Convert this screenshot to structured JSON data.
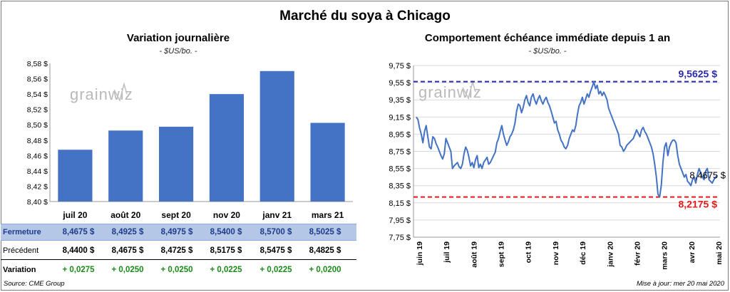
{
  "title": "Marché du soya à Chicago",
  "watermark": "grainwiz",
  "left_panel": {
    "subtitle": "Variation journalière",
    "unit": "- $US/bo. -"
  },
  "right_panel": {
    "subtitle": "Comportement  échéance immédiate depuis 1 an",
    "unit": "- $US/bo. -"
  },
  "chart_data": [
    {
      "type": "bar",
      "categories": [
        "juil 20",
        "août 20",
        "sept 20",
        "nov 20",
        "janv 21",
        "mars 21"
      ],
      "values": [
        8.4675,
        8.4925,
        8.4975,
        8.54,
        8.57,
        8.5025
      ],
      "ylim": [
        8.4,
        8.58
      ],
      "yticks": [
        "8,40 $",
        "8,42 $",
        "8,44 $",
        "8,46 $",
        "8,48 $",
        "8,50 $",
        "8,52 $",
        "8,54 $",
        "8,56 $",
        "8,58 $"
      ],
      "color": "#4472c4",
      "grid": false
    },
    {
      "type": "line",
      "color": "#4472c4",
      "ylim": [
        7.75,
        9.75
      ],
      "yticks": [
        "7,75 $",
        "7,95 $",
        "8,15 $",
        "8,35 $",
        "8,55 $",
        "8,75 $",
        "8,95 $",
        "9,15 $",
        "9,35 $",
        "9,55 $",
        "9,75 $"
      ],
      "xticks": [
        "juin 19",
        "juil 19",
        "août 19",
        "sept 19",
        "oct 19",
        "nov 19",
        "déc 19",
        "janv 20",
        "févr 20",
        "mars 20",
        "avr 20",
        "mai 20"
      ],
      "values": [
        9.15,
        9.12,
        9.02,
        8.95,
        8.85,
        8.98,
        9.05,
        8.92,
        8.8,
        8.78,
        8.92,
        8.9,
        8.84,
        8.8,
        8.75,
        8.7,
        8.66,
        8.72,
        8.9,
        8.85,
        8.8,
        8.75,
        8.55,
        8.58,
        8.6,
        8.62,
        8.57,
        8.55,
        8.6,
        8.72,
        8.8,
        8.76,
        8.68,
        8.58,
        8.62,
        8.56,
        8.65,
        8.7,
        8.56,
        8.6,
        8.55,
        8.62,
        8.65,
        8.68,
        8.6,
        8.62,
        8.66,
        8.7,
        8.74,
        8.85,
        8.9,
        8.98,
        9.05,
        8.95,
        8.88,
        8.82,
        8.86,
        8.92,
        8.95,
        9.0,
        9.08,
        9.22,
        9.3,
        9.28,
        9.2,
        9.26,
        9.35,
        9.4,
        9.32,
        9.28,
        9.38,
        9.42,
        9.35,
        9.3,
        9.36,
        9.4,
        9.34,
        9.3,
        9.35,
        9.38,
        9.32,
        9.28,
        9.22,
        9.15,
        9.08,
        9.1,
        9.0,
        8.95,
        8.88,
        8.85,
        8.8,
        8.78,
        8.82,
        8.9,
        8.95,
        9.0,
        8.98,
        9.05,
        9.18,
        9.28,
        9.32,
        9.38,
        9.3,
        9.36,
        9.42,
        9.38,
        9.45,
        9.5,
        9.56,
        9.48,
        9.52,
        9.42,
        9.45,
        9.4,
        9.44,
        9.4,
        9.35,
        9.25,
        9.2,
        9.15,
        9.1,
        9.05,
        9.0,
        8.95,
        8.82,
        8.8,
        8.75,
        8.78,
        8.82,
        8.84,
        8.86,
        8.88,
        8.9,
        8.95,
        9.0,
        8.96,
        8.92,
        9.0,
        9.03,
        8.98,
        8.95,
        8.9,
        8.85,
        8.8,
        8.72,
        8.6,
        8.45,
        8.25,
        8.22,
        8.35,
        8.62,
        8.8,
        8.85,
        8.7,
        8.8,
        8.85,
        8.88,
        8.88,
        8.85,
        8.7,
        8.6,
        8.55,
        8.5,
        8.45,
        8.48,
        8.4,
        8.38,
        8.35,
        8.42,
        8.45,
        8.38,
        8.48,
        8.55,
        8.5,
        8.45,
        8.42,
        8.52,
        8.55,
        8.42,
        8.4,
        8.38,
        8.42,
        8.45,
        8.4675
      ],
      "high": {
        "value": 9.5625,
        "label": "9,5625 $",
        "color": "#2b2ba8"
      },
      "low": {
        "value": 8.2175,
        "label": "8,2175 $",
        "color": "#e31a1a"
      },
      "last": {
        "value": 8.4675,
        "label": "8,4675 $"
      },
      "grid": true
    }
  ],
  "table": {
    "rows": [
      {
        "label": "Fermeture",
        "values": [
          "8,4675  $",
          "8,4925  $",
          "8,4975  $",
          "8,5400  $",
          "8,5700  $",
          "8,5025  $"
        ]
      },
      {
        "label": "Précédent",
        "values": [
          "8,4400  $",
          "8,4675  $",
          "8,4725  $",
          "8,5175  $",
          "8,5475  $",
          "8,4825  $"
        ]
      },
      {
        "label": "Variation",
        "values": [
          "+ 0,0275",
          "+ 0,0250",
          "+ 0,0250",
          "+ 0,0225",
          "+ 0,0225",
          "+ 0,0200"
        ]
      }
    ]
  },
  "footer": {
    "source": "Source: CME Group",
    "updated": "Mise à jour: mer 20 mai 2020"
  }
}
